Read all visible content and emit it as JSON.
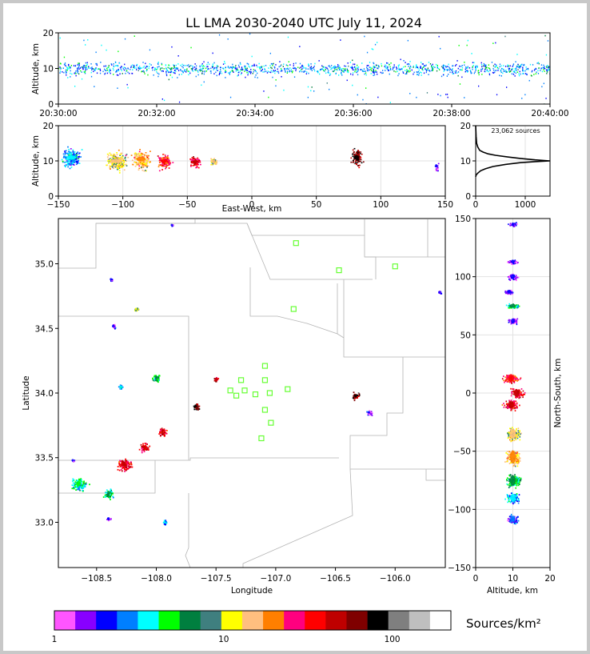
{
  "title": "LL LMA 2030-2040 UTC July 11, 2024",
  "colors": {
    "scale": [
      "#ff55ff",
      "#8800ff",
      "#0000ff",
      "#007fff",
      "#00ffff",
      "#00ff00",
      "#007f3f",
      "#3f7f7f",
      "#ffff00",
      "#ffbf7f",
      "#ff7f00",
      "#ff007f",
      "#ff0000",
      "#bf0000",
      "#7f0000",
      "#000000",
      "#7f7f7f",
      "#bfbfbf",
      "#ffffff"
    ],
    "station": "#66ff33",
    "boundary": "#b0b0b0"
  },
  "chart_data": [
    {
      "id": "time_height",
      "type": "heatmap",
      "ylabel": "Altitude, km",
      "ylim": [
        0,
        20
      ],
      "yticks": [
        "0",
        "10",
        "20"
      ],
      "xticks": [
        "20:30:00",
        "20:32:00",
        "20:34:00",
        "20:36:00",
        "20:38:00",
        "20:40:00"
      ],
      "xlim_minutes": [
        0,
        10
      ],
      "band_center_km": 10,
      "band_halfwidth_km": 3
    },
    {
      "id": "ew_height",
      "type": "heatmap",
      "xlabel": "East-West, km",
      "ylabel": "Altitude, km",
      "xlim": [
        -150,
        150
      ],
      "ylim": [
        0,
        20
      ],
      "xticks": [
        "−150",
        "−100",
        "−50",
        "0",
        "50",
        "100",
        "150"
      ],
      "yticks": [
        "0",
        "10",
        "20"
      ],
      "clusters": [
        {
          "x": -140,
          "y": 11,
          "w": 10,
          "h": 4,
          "level": 4
        },
        {
          "x": -105,
          "y": 10,
          "w": 12,
          "h": 4,
          "level": 9
        },
        {
          "x": -86,
          "y": 10.5,
          "w": 10,
          "h": 4,
          "level": 10
        },
        {
          "x": -68,
          "y": 10,
          "w": 8,
          "h": 3,
          "level": 12
        },
        {
          "x": -44,
          "y": 9.8,
          "w": 6,
          "h": 2.5,
          "level": 13
        },
        {
          "x": -30,
          "y": 10,
          "w": 4,
          "h": 2,
          "level": 9
        },
        {
          "x": 81,
          "y": 11,
          "w": 6,
          "h": 4,
          "level": 15
        },
        {
          "x": 143,
          "y": 8.5,
          "w": 2,
          "h": 2,
          "level": 2
        }
      ]
    },
    {
      "id": "alt_hist",
      "type": "line",
      "annotation": "23,062 sources",
      "xlim": [
        0,
        1500
      ],
      "ylim": [
        0,
        20
      ],
      "xticks": [
        "0",
        "1000"
      ],
      "yticks": [
        "0",
        "10",
        "20"
      ],
      "x": [
        0,
        10,
        40,
        100,
        200,
        350,
        600,
        900,
        1200,
        1500,
        1200,
        900,
        600,
        400,
        250,
        150,
        80,
        40,
        20,
        8,
        0
      ],
      "y": [
        5.5,
        6,
        6.5,
        7.2,
        7.8,
        8.4,
        9,
        9.5,
        9.8,
        10,
        10.3,
        10.7,
        11.2,
        11.6,
        12,
        12.5,
        13,
        14,
        15,
        17,
        20
      ]
    },
    {
      "id": "plan_view",
      "type": "scatter",
      "xlabel": "Longitude",
      "ylabel": "Latitude",
      "xlim": [
        -108.82,
        -105.58
      ],
      "ylim": [
        32.65,
        35.35
      ],
      "xticks": [
        "−108.5",
        "−108.0",
        "−107.5",
        "−107.0",
        "−106.5",
        "−106.0"
      ],
      "yticks": [
        "33.0",
        "33.5",
        "34.0",
        "34.5",
        "35.0"
      ],
      "cells": [
        {
          "lon": -108.65,
          "lat": 33.3,
          "w": 0.1,
          "h": 0.07,
          "level": 5
        },
        {
          "lon": -108.4,
          "lat": 33.22,
          "w": 0.06,
          "h": 0.06,
          "level": 6
        },
        {
          "lon": -108.27,
          "lat": 33.45,
          "w": 0.09,
          "h": 0.07,
          "level": 13
        },
        {
          "lon": -108.1,
          "lat": 33.58,
          "w": 0.06,
          "h": 0.05,
          "level": 13
        },
        {
          "lon": -107.95,
          "lat": 33.7,
          "w": 0.05,
          "h": 0.05,
          "level": 13
        },
        {
          "lon": -108.0,
          "lat": 34.12,
          "w": 0.06,
          "h": 0.05,
          "level": 6
        },
        {
          "lon": -107.67,
          "lat": 33.9,
          "w": 0.04,
          "h": 0.04,
          "level": 15
        },
        {
          "lon": -107.5,
          "lat": 34.11,
          "w": 0.03,
          "h": 0.03,
          "level": 13
        },
        {
          "lon": -108.3,
          "lat": 34.05,
          "w": 0.03,
          "h": 0.03,
          "level": 4
        },
        {
          "lon": -108.17,
          "lat": 34.65,
          "w": 0.03,
          "h": 0.02,
          "level": 8
        },
        {
          "lon": -108.36,
          "lat": 34.52,
          "w": 0.02,
          "h": 0.03,
          "level": 2
        },
        {
          "lon": -108.38,
          "lat": 34.88,
          "w": 0.02,
          "h": 0.02,
          "level": 2
        },
        {
          "lon": -108.4,
          "lat": 33.03,
          "w": 0.03,
          "h": 0.02,
          "level": 2
        },
        {
          "lon": -107.93,
          "lat": 33.0,
          "w": 0.03,
          "h": 0.03,
          "level": 4
        },
        {
          "lon": -106.33,
          "lat": 33.98,
          "w": 0.05,
          "h": 0.04,
          "level": 15
        },
        {
          "lon": -106.22,
          "lat": 33.85,
          "w": 0.04,
          "h": 0.03,
          "level": 2
        },
        {
          "lon": -105.63,
          "lat": 34.78,
          "w": 0.02,
          "h": 0.02,
          "level": 2
        },
        {
          "lon": -107.87,
          "lat": 35.3,
          "w": 0.01,
          "h": 0.02,
          "level": 2
        },
        {
          "lon": -108.7,
          "lat": 33.48,
          "w": 0.02,
          "h": 0.01,
          "level": 2
        }
      ],
      "stations": [
        {
          "lon": -106.83,
          "lat": 35.16
        },
        {
          "lon": -106.47,
          "lat": 34.95
        },
        {
          "lon": -106.0,
          "lat": 34.98
        },
        {
          "lon": -106.85,
          "lat": 34.65
        },
        {
          "lon": -107.09,
          "lat": 34.21
        },
        {
          "lon": -107.29,
          "lat": 34.1
        },
        {
          "lon": -107.09,
          "lat": 34.1
        },
        {
          "lon": -107.38,
          "lat": 34.02
        },
        {
          "lon": -107.26,
          "lat": 34.02
        },
        {
          "lon": -107.33,
          "lat": 33.98
        },
        {
          "lon": -107.17,
          "lat": 33.99
        },
        {
          "lon": -107.05,
          "lat": 34.0
        },
        {
          "lon": -106.9,
          "lat": 34.03
        },
        {
          "lon": -107.09,
          "lat": 33.87
        },
        {
          "lon": -107.04,
          "lat": 33.77
        },
        {
          "lon": -107.12,
          "lat": 33.65
        }
      ]
    },
    {
      "id": "ns_height",
      "type": "heatmap",
      "xlabel": "Altitude, km",
      "ylabel": "North-South, km",
      "xlim": [
        0,
        20
      ],
      "ylim": [
        -150,
        150
      ],
      "xticks": [
        "0",
        "10",
        "20"
      ],
      "yticks": [
        "−150",
        "−100",
        "−50",
        "0",
        "50",
        "100",
        "150"
      ],
      "clusters": [
        {
          "y": 145,
          "x": 10,
          "w": 1.5,
          "h": 3,
          "level": 2
        },
        {
          "y": 113,
          "x": 10,
          "w": 2,
          "h": 3,
          "level": 2
        },
        {
          "y": 100,
          "x": 10,
          "w": 2,
          "h": 4,
          "level": 2
        },
        {
          "y": 87,
          "x": 9,
          "w": 2,
          "h": 3,
          "level": 2
        },
        {
          "y": 75,
          "x": 10,
          "w": 3,
          "h": 3,
          "level": 6
        },
        {
          "y": 62,
          "x": 10,
          "w": 2,
          "h": 4,
          "level": 2
        },
        {
          "y": 13,
          "x": 9.5,
          "w": 3,
          "h": 6,
          "level": 12
        },
        {
          "y": 0,
          "x": 11,
          "w": 3,
          "h": 6,
          "level": 13
        },
        {
          "y": -10,
          "x": 9.5,
          "w": 3,
          "h": 6,
          "level": 13
        },
        {
          "y": -35,
          "x": 10,
          "w": 3,
          "h": 8,
          "level": 9
        },
        {
          "y": -55,
          "x": 10,
          "w": 3,
          "h": 10,
          "level": 10
        },
        {
          "y": -75,
          "x": 10,
          "w": 3,
          "h": 8,
          "level": 6
        },
        {
          "y": -90,
          "x": 10,
          "w": 3,
          "h": 6,
          "level": 4
        },
        {
          "y": -108,
          "x": 10,
          "w": 2.5,
          "h": 5,
          "level": 3
        }
      ]
    },
    {
      "id": "colorbar",
      "type": "bar",
      "label": "Sources/km²",
      "ticks": [
        "1",
        "10",
        "100"
      ]
    }
  ]
}
